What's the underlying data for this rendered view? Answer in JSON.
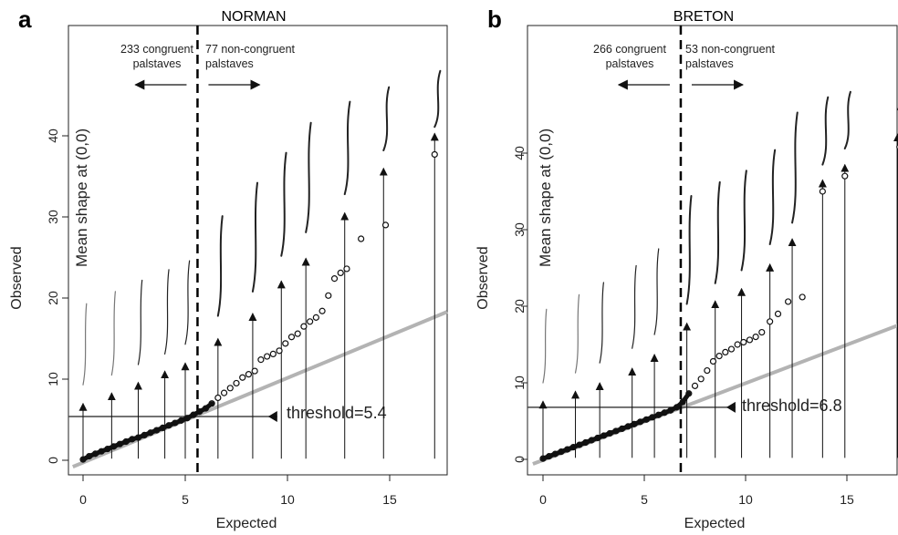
{
  "chart_data": [
    {
      "type": "scatter",
      "panel_letter": "a",
      "title": "NORMAN",
      "xlabel": "Expected",
      "ylabel": "Observed",
      "xlim": [
        -0.5,
        18
      ],
      "ylim": [
        -1.2,
        48
      ],
      "xticks": [
        0,
        5,
        10,
        15
      ],
      "yticks": [
        0,
        10,
        20,
        30,
        40
      ],
      "threshold": 5.4,
      "threshold_label": "threshold=5.4",
      "mean_shape_label": "Mean shape at (0,0)",
      "left_annotation": [
        "233 congruent",
        "palstaves"
      ],
      "right_annotation": [
        "77 non-congruent",
        "palstaves"
      ],
      "dashed_line_x": 5.6,
      "reference_line": {
        "x": [
          -0.5,
          18
        ],
        "y": [
          -0.8,
          18.3
        ]
      },
      "points": [
        [
          0,
          0.1
        ],
        [
          0.3,
          0.5
        ],
        [
          0.6,
          0.8
        ],
        [
          0.9,
          1.1
        ],
        [
          1.2,
          1.4
        ],
        [
          1.5,
          1.7
        ],
        [
          1.8,
          2.0
        ],
        [
          2.1,
          2.3
        ],
        [
          2.4,
          2.6
        ],
        [
          2.7,
          2.8
        ],
        [
          3.0,
          3.1
        ],
        [
          3.3,
          3.4
        ],
        [
          3.6,
          3.7
        ],
        [
          3.9,
          4.0
        ],
        [
          4.2,
          4.3
        ],
        [
          4.5,
          4.6
        ],
        [
          4.8,
          4.9
        ],
        [
          5.1,
          5.2
        ],
        [
          5.4,
          5.6
        ],
        [
          5.7,
          6.0
        ],
        [
          6.0,
          6.4
        ],
        [
          6.3,
          7.0
        ],
        [
          6.6,
          7.7
        ],
        [
          6.9,
          8.3
        ],
        [
          7.2,
          8.9
        ],
        [
          7.5,
          9.5
        ],
        [
          7.8,
          10.2
        ],
        [
          8.1,
          10.6
        ],
        [
          8.4,
          11.0
        ],
        [
          8.7,
          12.4
        ],
        [
          9.0,
          12.8
        ],
        [
          9.3,
          13.1
        ],
        [
          9.6,
          13.5
        ],
        [
          9.9,
          14.4
        ],
        [
          10.2,
          15.2
        ],
        [
          10.5,
          15.6
        ],
        [
          10.8,
          16.5
        ],
        [
          11.1,
          17.1
        ],
        [
          11.4,
          17.6
        ],
        [
          11.7,
          18.4
        ],
        [
          12.0,
          20.3
        ],
        [
          12.3,
          22.4
        ],
        [
          12.6,
          23.1
        ],
        [
          12.9,
          23.6
        ],
        [
          13.6,
          27.3
        ],
        [
          14.8,
          29.0
        ],
        [
          17.2,
          37.7
        ]
      ],
      "arrows": [
        [
          0,
          7.0
        ],
        [
          1.4,
          8.3
        ],
        [
          2.7,
          9.6
        ],
        [
          4.0,
          11.0
        ],
        [
          5.0,
          12.0
        ],
        [
          6.6,
          15.0
        ],
        [
          8.3,
          18.1
        ],
        [
          9.7,
          22.1
        ],
        [
          10.9,
          24.9
        ],
        [
          12.8,
          30.5
        ],
        [
          14.7,
          36.0
        ],
        [
          17.2,
          40.3
        ]
      ],
      "shapes": [
        [
          0,
          9.3,
          19.3
        ],
        [
          1.4,
          10.5,
          20.8
        ],
        [
          2.7,
          11.8,
          22.2
        ],
        [
          4.0,
          13.1,
          23.5
        ],
        [
          5.0,
          14.3,
          24.6
        ],
        [
          6.6,
          17.8,
          30.1
        ],
        [
          8.3,
          20.8,
          34.2
        ],
        [
          9.7,
          25.2,
          37.9
        ],
        [
          10.9,
          28.1,
          41.6
        ],
        [
          12.8,
          32.8,
          44.2
        ],
        [
          14.7,
          38.2,
          46.0
        ],
        [
          17.2,
          41.1,
          48.5
        ]
      ]
    },
    {
      "type": "scatter",
      "panel_letter": "b",
      "title": "BRETON",
      "xlabel": "Expected",
      "ylabel": "Observed",
      "xlim": [
        -0.5,
        18
      ],
      "ylim": [
        -1.2,
        48
      ],
      "xticks": [
        0,
        5,
        10,
        15
      ],
      "yticks": [
        0,
        10,
        20,
        30,
        40
      ],
      "threshold": 6.8,
      "threshold_label": "threshold=6.8",
      "mean_shape_label": "Mean shape at (0,0)",
      "left_annotation": [
        "266 congruent",
        "palstaves"
      ],
      "right_annotation": [
        "53 non-congruent",
        "palstaves"
      ],
      "dashed_line_x": 6.8,
      "reference_line": {
        "x": [
          -0.5,
          18
        ],
        "y": [
          -0.6,
          17.5
        ]
      },
      "points": [
        [
          0,
          0.1
        ],
        [
          0.3,
          0.4
        ],
        [
          0.6,
          0.7
        ],
        [
          0.9,
          1.0
        ],
        [
          1.2,
          1.3
        ],
        [
          1.5,
          1.6
        ],
        [
          1.8,
          1.9
        ],
        [
          2.1,
          2.2
        ],
        [
          2.4,
          2.5
        ],
        [
          2.7,
          2.8
        ],
        [
          3.0,
          3.1
        ],
        [
          3.3,
          3.4
        ],
        [
          3.6,
          3.7
        ],
        [
          3.9,
          4.0
        ],
        [
          4.2,
          4.3
        ],
        [
          4.5,
          4.6
        ],
        [
          4.8,
          4.9
        ],
        [
          5.1,
          5.2
        ],
        [
          5.4,
          5.5
        ],
        [
          5.7,
          5.8
        ],
        [
          6.0,
          6.1
        ],
        [
          6.3,
          6.4
        ],
        [
          6.6,
          6.8
        ],
        [
          6.9,
          7.5
        ],
        [
          7.2,
          8.6
        ],
        [
          7.5,
          9.6
        ],
        [
          7.8,
          10.5
        ],
        [
          8.1,
          11.6
        ],
        [
          8.4,
          12.8
        ],
        [
          8.7,
          13.5
        ],
        [
          9.0,
          14.0
        ],
        [
          9.3,
          14.4
        ],
        [
          9.6,
          15.0
        ],
        [
          9.9,
          15.3
        ],
        [
          10.2,
          15.6
        ],
        [
          10.5,
          16.0
        ],
        [
          10.8,
          16.6
        ],
        [
          11.2,
          18.0
        ],
        [
          11.6,
          19.0
        ],
        [
          12.1,
          20.6
        ],
        [
          12.8,
          21.2
        ],
        [
          13.8,
          35.0
        ],
        [
          14.9,
          37.0
        ],
        [
          17.6,
          40.8
        ]
      ],
      "arrows": [
        [
          0,
          7.6
        ],
        [
          1.6,
          8.9
        ],
        [
          2.8,
          10.0
        ],
        [
          4.4,
          11.9
        ],
        [
          5.5,
          13.7
        ],
        [
          7.1,
          17.8
        ],
        [
          8.5,
          20.7
        ],
        [
          9.8,
          22.3
        ],
        [
          11.2,
          25.5
        ],
        [
          12.3,
          28.8
        ],
        [
          13.8,
          36.5
        ],
        [
          14.9,
          38.5
        ],
        [
          17.5,
          42.5
        ]
      ],
      "shapes": [
        [
          0,
          10.0,
          19.6
        ],
        [
          1.6,
          11.3,
          21.5
        ],
        [
          2.8,
          12.6,
          23.1
        ],
        [
          4.4,
          14.5,
          25.3
        ],
        [
          5.5,
          16.3,
          27.5
        ],
        [
          7.1,
          20.3,
          34.4
        ],
        [
          8.5,
          23.0,
          36.2
        ],
        [
          9.8,
          24.7,
          37.7
        ],
        [
          11.2,
          28.1,
          40.4
        ],
        [
          12.3,
          30.9,
          45.3
        ],
        [
          13.8,
          38.5,
          47.3
        ],
        [
          14.9,
          40.6,
          49.2
        ],
        [
          17.5,
          45.7,
          49.2
        ]
      ]
    }
  ]
}
